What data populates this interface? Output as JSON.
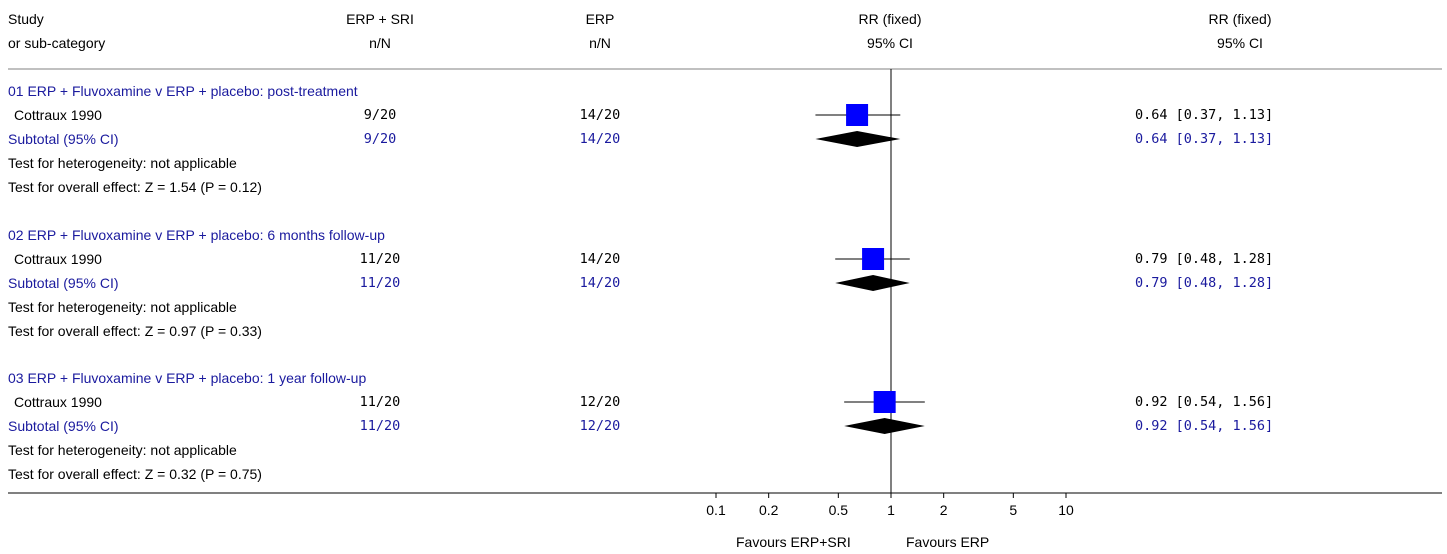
{
  "header": {
    "col_study": [
      "Study",
      "or sub-category"
    ],
    "col_treat": [
      "ERP + SRI",
      "n/N"
    ],
    "col_ctrl": [
      "ERP",
      "n/N"
    ],
    "col_plot": [
      "RR (fixed)",
      "95% CI"
    ],
    "col_rr": [
      "RR (fixed)",
      "95% CI"
    ]
  },
  "colors": {
    "heading": "#1a1a9e",
    "study_marker": "#0000ff",
    "diamond": "#000000",
    "subtotal_text": "#1a1a9e"
  },
  "chart_data": {
    "type": "forest",
    "scale": "log",
    "xlim": [
      0.1,
      10
    ],
    "null_value": 1,
    "ticks": [
      "0.1",
      "0.2",
      "0.5",
      "1",
      "2",
      "5",
      "10"
    ],
    "tick_values": [
      0.1,
      0.2,
      0.5,
      1,
      2,
      5,
      10
    ],
    "favours_left": "Favours ERP+SRI",
    "favours_right": "Favours ERP",
    "groups": [
      {
        "heading": "01 ERP + Fluvoxamine v ERP + placebo: post-treatment",
        "study": {
          "name": "Cottraux 1990",
          "treat": "9/20",
          "ctrl": "14/20",
          "rr": 0.64,
          "lo": 0.37,
          "hi": 1.13,
          "label": "0.64 [0.37, 1.13]"
        },
        "subtotal": {
          "name": "Subtotal (95% CI)",
          "treat": "9/20",
          "ctrl": "14/20",
          "rr": 0.64,
          "lo": 0.37,
          "hi": 1.13,
          "label": "0.64 [0.37, 1.13]"
        },
        "heterogeneity": "Test for heterogeneity: not applicable",
        "overall": "Test for overall effect: Z = 1.54 (P = 0.12)"
      },
      {
        "heading": "02 ERP + Fluvoxamine v ERP + placebo: 6 months follow-up",
        "study": {
          "name": "Cottraux 1990",
          "treat": "11/20",
          "ctrl": "14/20",
          "rr": 0.79,
          "lo": 0.48,
          "hi": 1.28,
          "label": "0.79 [0.48, 1.28]"
        },
        "subtotal": {
          "name": "Subtotal (95% CI)",
          "treat": "11/20",
          "ctrl": "14/20",
          "rr": 0.79,
          "lo": 0.48,
          "hi": 1.28,
          "label": "0.79 [0.48, 1.28]"
        },
        "heterogeneity": "Test for heterogeneity: not applicable",
        "overall": "Test for overall effect: Z = 0.97 (P = 0.33)"
      },
      {
        "heading": "03 ERP + Fluvoxamine v ERP + placebo: 1 year follow-up",
        "study": {
          "name": "Cottraux 1990",
          "treat": "11/20",
          "ctrl": "12/20",
          "rr": 0.92,
          "lo": 0.54,
          "hi": 1.56,
          "label": "0.92 [0.54, 1.56]"
        },
        "subtotal": {
          "name": "Subtotal (95% CI)",
          "treat": "11/20",
          "ctrl": "12/20",
          "rr": 0.92,
          "lo": 0.54,
          "hi": 1.56,
          "label": "0.92 [0.54, 1.56]"
        },
        "heterogeneity": "Test for heterogeneity: not applicable",
        "overall": "Test for overall effect: Z = 0.32 (P = 0.75)"
      }
    ]
  }
}
